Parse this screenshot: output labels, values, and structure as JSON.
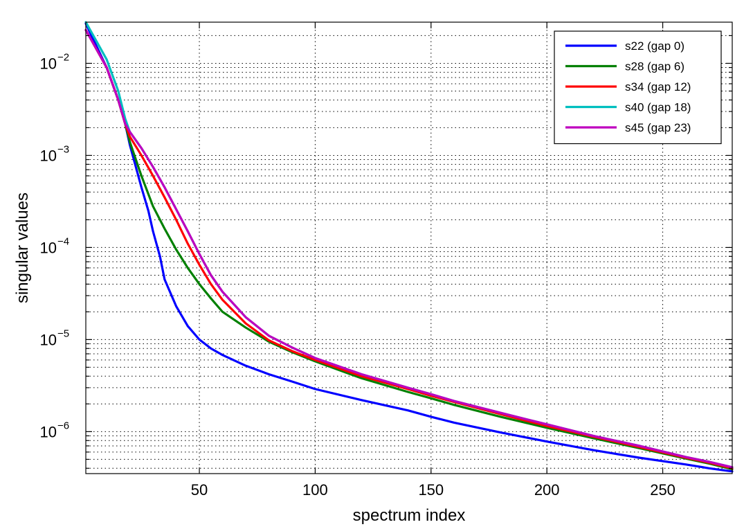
{
  "chart_data": {
    "type": "line",
    "title": "",
    "xlabel": "spectrum index",
    "ylabel": "singular values",
    "xlim": [
      1,
      280
    ],
    "ylim": [
      3.5e-07,
      0.028
    ],
    "yscale": "log",
    "grid": true,
    "legend_position": "top-right",
    "xticks": [
      50,
      100,
      150,
      200,
      250
    ],
    "yticks": [
      {
        "value": 1e-06,
        "base": "10",
        "exp": "−6"
      },
      {
        "value": 1e-05,
        "base": "10",
        "exp": "−5"
      },
      {
        "value": 0.0001,
        "base": "10",
        "exp": "−4"
      },
      {
        "value": 0.001,
        "base": "10",
        "exp": "−3"
      },
      {
        "value": 0.01,
        "base": "10",
        "exp": "−2"
      }
    ],
    "series": [
      {
        "name": "s22 (gap 0)",
        "color": "#0000ff",
        "x": [
          1,
          10,
          15,
          18,
          20,
          25,
          28,
          30,
          33,
          35,
          40,
          45,
          50,
          55,
          60,
          70,
          80,
          90,
          100,
          120,
          140,
          150,
          160,
          180,
          200,
          220,
          240,
          260,
          270,
          280
        ],
        "y": [
          0.027,
          0.009,
          0.004,
          0.0022,
          0.0013,
          0.00045,
          0.00025,
          0.00015,
          8e-05,
          4.5e-05,
          2.3e-05,
          1.4e-05,
          1e-05,
          8e-06,
          6.8e-06,
          5.2e-06,
          4.2e-06,
          3.5e-06,
          2.9e-06,
          2.2e-06,
          1.7e-06,
          1.45e-06,
          1.25e-06,
          9.8e-07,
          7.8e-07,
          6.3e-07,
          5.2e-07,
          4.4e-07,
          4e-07,
          3.7e-07
        ]
      },
      {
        "name": "s28 (gap 6)",
        "color": "#008000",
        "x": [
          1,
          10,
          15,
          18,
          20,
          25,
          30,
          35,
          40,
          45,
          50,
          55,
          60,
          70,
          80,
          90,
          100,
          120,
          140,
          150,
          160,
          180,
          200,
          220,
          240,
          260,
          270,
          280
        ],
        "y": [
          0.023,
          0.009,
          0.004,
          0.0022,
          0.0014,
          0.0006,
          0.00028,
          0.00016,
          9.5e-05,
          6e-05,
          4e-05,
          2.8e-05,
          2e-05,
          1.35e-05,
          9.5e-06,
          7.3e-06,
          5.8e-06,
          3.8e-06,
          2.7e-06,
          2.3e-06,
          1.95e-06,
          1.45e-06,
          1.1e-06,
          8.5e-07,
          6.6e-07,
          5.1e-07,
          4.5e-07,
          3.9e-07
        ]
      },
      {
        "name": "s34 (gap 12)",
        "color": "#ff0000",
        "x": [
          1,
          10,
          15,
          18,
          20,
          25,
          30,
          35,
          40,
          45,
          50,
          55,
          60,
          70,
          80,
          90,
          100,
          120,
          140,
          150,
          160,
          180,
          200,
          220,
          240,
          260,
          270,
          280
        ],
        "y": [
          0.023,
          0.009,
          0.004,
          0.0022,
          0.0016,
          0.001,
          0.0006,
          0.00035,
          0.0002,
          0.00011,
          6.5e-05,
          4e-05,
          2.7e-05,
          1.5e-05,
          9.8e-06,
          7.5e-06,
          6e-06,
          4e-06,
          2.9e-06,
          2.45e-06,
          2.1e-06,
          1.55e-06,
          1.15e-06,
          8.8e-07,
          6.8e-07,
          5.2e-07,
          4.6e-07,
          4e-07
        ]
      },
      {
        "name": "s40 (gap 18)",
        "color": "#00bfbf",
        "x": [
          1,
          10,
          15,
          18,
          20,
          25,
          30,
          35,
          40,
          45,
          50,
          55,
          60,
          70,
          80,
          90,
          100,
          120,
          140,
          150,
          160,
          180,
          200,
          220,
          240,
          260,
          270,
          280
        ],
        "y": [
          0.028,
          0.011,
          0.005,
          0.0025,
          0.0018,
          0.0012,
          0.00075,
          0.00045,
          0.00026,
          0.00015,
          8.5e-05,
          5e-05,
          3.3e-05,
          1.75e-05,
          1.1e-05,
          8.2e-06,
          6.3e-06,
          4.2e-06,
          3e-06,
          2.55e-06,
          2.15e-06,
          1.6e-06,
          1.2e-06,
          9e-07,
          7e-07,
          5.3e-07,
          4.7e-07,
          4.1e-07
        ]
      },
      {
        "name": "s45 (gap 23)",
        "color": "#bf00bf",
        "x": [
          1,
          10,
          15,
          18,
          20,
          25,
          30,
          35,
          40,
          45,
          50,
          55,
          60,
          70,
          80,
          90,
          100,
          120,
          140,
          150,
          160,
          180,
          200,
          220,
          240,
          260,
          270,
          280
        ],
        "y": [
          0.023,
          0.009,
          0.004,
          0.0022,
          0.0018,
          0.0012,
          0.00075,
          0.00045,
          0.00026,
          0.00015,
          8.5e-05,
          5e-05,
          3.3e-05,
          1.75e-05,
          1.1e-05,
          8.2e-06,
          6.3e-06,
          4.2e-06,
          3e-06,
          2.55e-06,
          2.15e-06,
          1.6e-06,
          1.2e-06,
          9e-07,
          7e-07,
          5.3e-07,
          4.7e-07,
          4.1e-07
        ]
      }
    ]
  }
}
